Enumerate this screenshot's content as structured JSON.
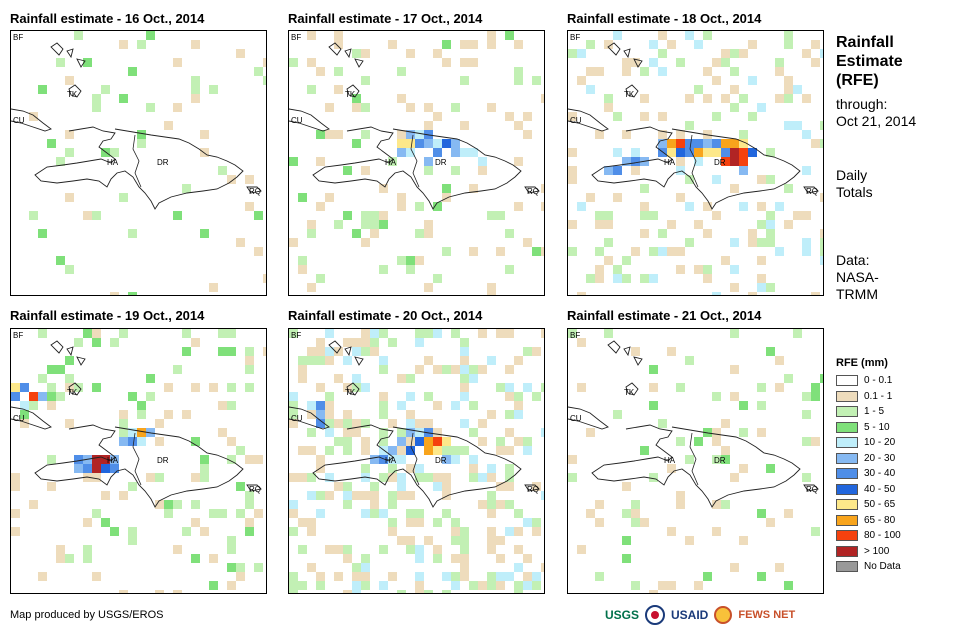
{
  "panels": [
    {
      "title": "Rainfall estimate - 16 Oct., 2014"
    },
    {
      "title": "Rainfall estimate - 17 Oct., 2014"
    },
    {
      "title": "Rainfall estimate - 18 Oct., 2014"
    },
    {
      "title": "Rainfall estimate - 19 Oct., 2014"
    },
    {
      "title": "Rainfall estimate - 20 Oct., 2014"
    },
    {
      "title": "Rainfall estimate - 21 Oct., 2014"
    }
  ],
  "map_labels": {
    "bf": "BF",
    "cu": "CU",
    "tk": "TK",
    "ha": "HA",
    "dr": "DR",
    "rq": "RQ"
  },
  "side": {
    "title_line1": "Rainfall",
    "title_line2": "Estimate",
    "title_line3": "(RFE)",
    "through_label": "through:",
    "through_date": "Oct 21, 2014",
    "daily_line1": "Daily",
    "daily_line2": "Totals",
    "data_line1": "Data:",
    "data_line2": "NASA-",
    "data_line3": "TRMM"
  },
  "legend": {
    "title": "RFE (mm)",
    "items": [
      {
        "label": "0 - 0.1",
        "color": "#ffffff"
      },
      {
        "label": "0.1 - 1",
        "color": "#eedcbc"
      },
      {
        "label": "1 - 5",
        "color": "#c2f0b4"
      },
      {
        "label": "5 - 10",
        "color": "#7fe07a"
      },
      {
        "label": "10 - 20",
        "color": "#bfeefa"
      },
      {
        "label": "20 - 30",
        "color": "#86b9f2"
      },
      {
        "label": "30 - 40",
        "color": "#4f8ee8"
      },
      {
        "label": "40 - 50",
        "color": "#2166dd"
      },
      {
        "label": "50 - 65",
        "color": "#fde88a"
      },
      {
        "label": "65 - 80",
        "color": "#f8a41c"
      },
      {
        "label": "80 - 100",
        "color": "#f5410e"
      },
      {
        "label": "> 100",
        "color": "#b12424"
      },
      {
        "label": "No Data",
        "color": "#999999"
      }
    ]
  },
  "credit": "Map produced by USGS/EROS",
  "logos": {
    "usgs": "USGS",
    "usaid": "USAID",
    "fewsnet": "FEWS NET"
  }
}
